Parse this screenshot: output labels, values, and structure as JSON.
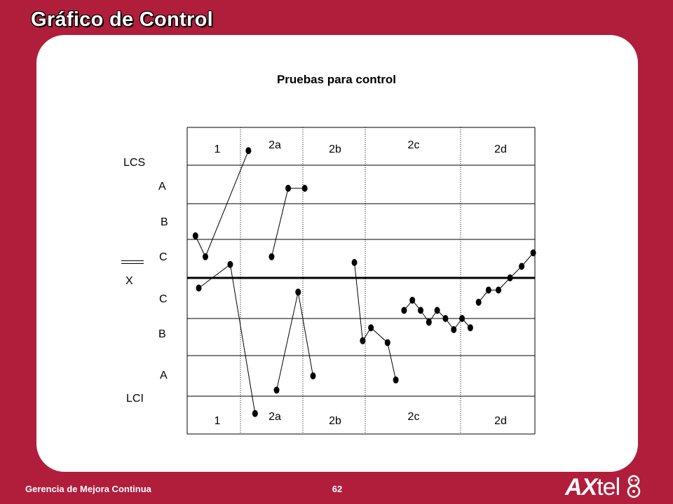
{
  "slide": {
    "title": "Gráfico de Control",
    "footer": "Gerencia de Mejora Continua",
    "page_number": "62",
    "logo_text": "AXtel"
  },
  "chart_title": "Pruebas para control",
  "zone_labels": {
    "ucl": "LCS",
    "a_top": "A",
    "b_top": "B",
    "c_top": "C",
    "center": "X",
    "c_bottom": "C",
    "b_bottom": "B",
    "a_bottom": "A",
    "lcl": "LCI"
  },
  "chart_data": {
    "type": "line",
    "title": "Pruebas para control",
    "y_zones": [
      "LCS",
      "A",
      "B",
      "C",
      "X",
      "C",
      "B",
      "A",
      "LCI"
    ],
    "ylim": [
      -3,
      3
    ],
    "sections": [
      {
        "top_label": "1",
        "bottom_label": "1"
      },
      {
        "top_label": "2a",
        "bottom_label": "2a"
      },
      {
        "top_label": "2b",
        "bottom_label": "2b"
      },
      {
        "top_label": "2c",
        "bottom_label": "2c"
      },
      {
        "top_label": "2d",
        "bottom_label": "2d"
      }
    ],
    "series": [
      {
        "values": [
          {
            "x": 0.5,
            "y": 1.1
          },
          {
            "x": 1.1,
            "y": 0.55
          },
          {
            "x": 3.7,
            "y": 3.4
          }
        ]
      },
      {
        "values": [
          {
            "x": 0.7,
            "y": -0.25
          },
          {
            "x": 2.6,
            "y": 0.35
          },
          {
            "x": 4.1,
            "y": -3.45
          }
        ]
      },
      {
        "values": [
          {
            "x": 5.1,
            "y": 0.55
          },
          {
            "x": 6.1,
            "y": 2.4
          },
          {
            "x": 7.1,
            "y": 2.4
          }
        ]
      },
      {
        "values": [
          {
            "x": 5.4,
            "y": -2.85
          },
          {
            "x": 6.7,
            "y": -0.35
          },
          {
            "x": 7.6,
            "y": -2.5
          }
        ]
      },
      {
        "values": [
          {
            "x": 10.1,
            "y": 0.4
          },
          {
            "x": 10.6,
            "y": -1.6
          },
          {
            "x": 11.1,
            "y": -1.25
          },
          {
            "x": 12.1,
            "y": -1.65
          },
          {
            "x": 12.6,
            "y": -2.6
          }
        ]
      },
      {
        "values": [
          {
            "x": 13.1,
            "y": -0.8
          },
          {
            "x": 13.6,
            "y": -0.55
          },
          {
            "x": 14.1,
            "y": -0.8
          },
          {
            "x": 14.6,
            "y": -1.1
          },
          {
            "x": 15.1,
            "y": -0.8
          },
          {
            "x": 15.6,
            "y": -1.0
          },
          {
            "x": 16.1,
            "y": -1.3
          },
          {
            "x": 16.6,
            "y": -1.0
          },
          {
            "x": 17.1,
            "y": -1.25
          }
        ]
      },
      {
        "values": [
          {
            "x": 17.6,
            "y": -0.6
          },
          {
            "x": 18.2,
            "y": -0.3
          },
          {
            "x": 18.8,
            "y": -0.3
          },
          {
            "x": 19.5,
            "y": 0.0
          },
          {
            "x": 20.2,
            "y": 0.3
          },
          {
            "x": 20.9,
            "y": 0.65
          }
        ]
      }
    ]
  }
}
